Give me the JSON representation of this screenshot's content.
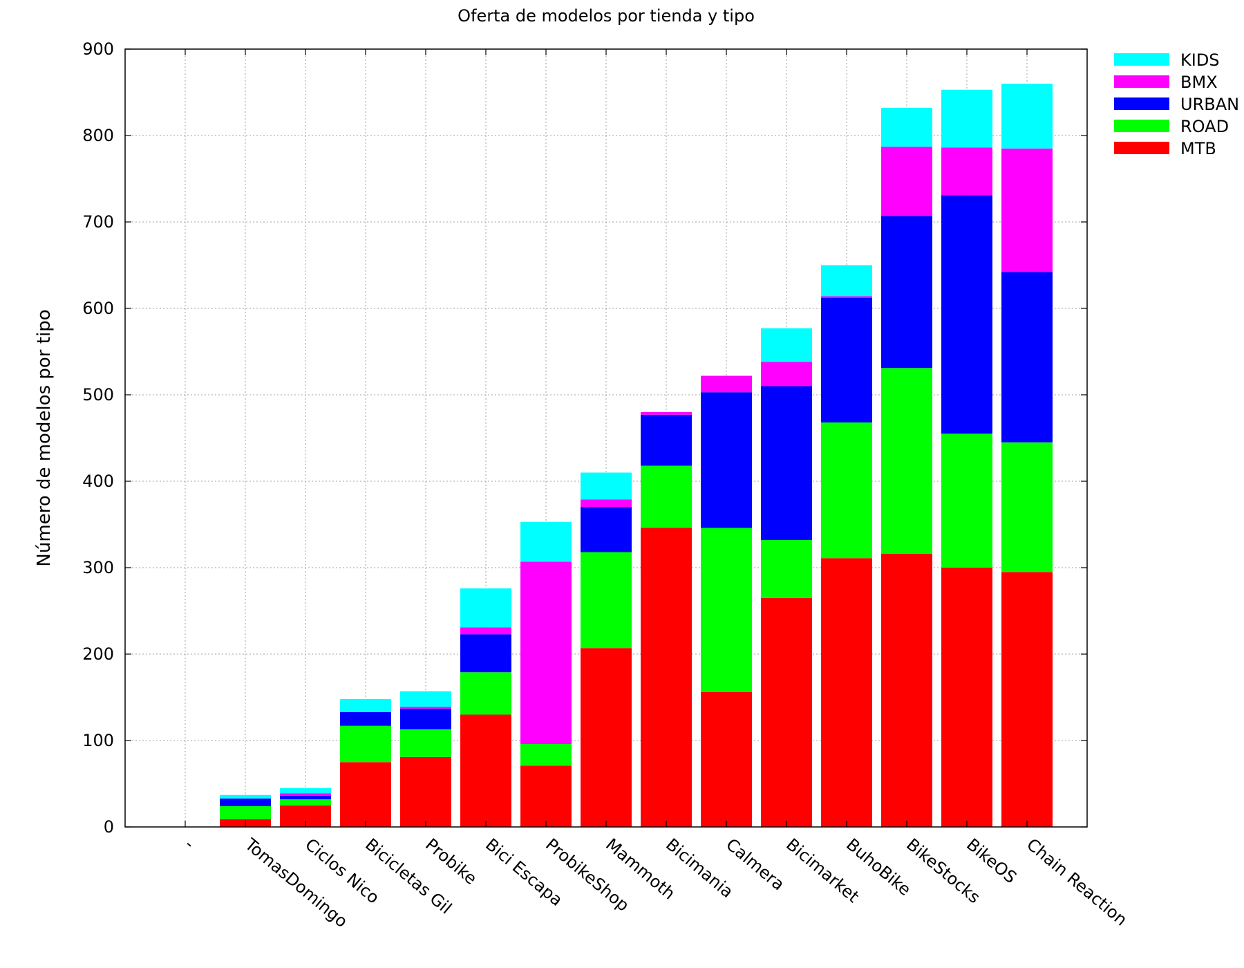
{
  "chart_data": {
    "type": "bar",
    "stacked": true,
    "title": "Oferta de modelos por tienda y tipo",
    "xlabel": "",
    "ylabel": "Número de modelos por tipo",
    "ylim": [
      0,
      900
    ],
    "yticks": [
      0,
      100,
      200,
      300,
      400,
      500,
      600,
      700,
      800,
      900
    ],
    "grid": true,
    "legend_position": "top-right, outside plot",
    "categories": [
      "-",
      "TomasDomingo",
      "Ciclos Nico",
      "Bicicletas Gil",
      "Probike",
      "Bici Escapa",
      "ProbikeShop",
      "Mammoth",
      "Bicimania",
      "Calmera",
      "Bicimarket",
      "BuhoBike",
      "BikeStocks",
      "BikeOS",
      "Chain Reaction"
    ],
    "series": [
      {
        "name": "MTB",
        "color": "#ff0000",
        "values": [
          0,
          9,
          25,
          75,
          81,
          130,
          71,
          207,
          346,
          156,
          265,
          311,
          316,
          300,
          295
        ]
      },
      {
        "name": "ROAD",
        "color": "#00ff00",
        "values": [
          0,
          15,
          7,
          42,
          32,
          49,
          25,
          111,
          72,
          190,
          67,
          157,
          215,
          155,
          150
        ]
      },
      {
        "name": "URBAN",
        "color": "#0000ff",
        "values": [
          0,
          9,
          4,
          16,
          24,
          44,
          0,
          52,
          59,
          157,
          178,
          144,
          176,
          276,
          197
        ]
      },
      {
        "name": "BMX",
        "color": "#ff00ff",
        "values": [
          0,
          0,
          3,
          0,
          2,
          8,
          211,
          9,
          3,
          19,
          28,
          2,
          80,
          55,
          143
        ]
      },
      {
        "name": "KIDS",
        "color": "#00ffff",
        "values": [
          0,
          4,
          6,
          15,
          18,
          45,
          46,
          31,
          0,
          0,
          39,
          36,
          45,
          67,
          75
        ]
      }
    ]
  }
}
